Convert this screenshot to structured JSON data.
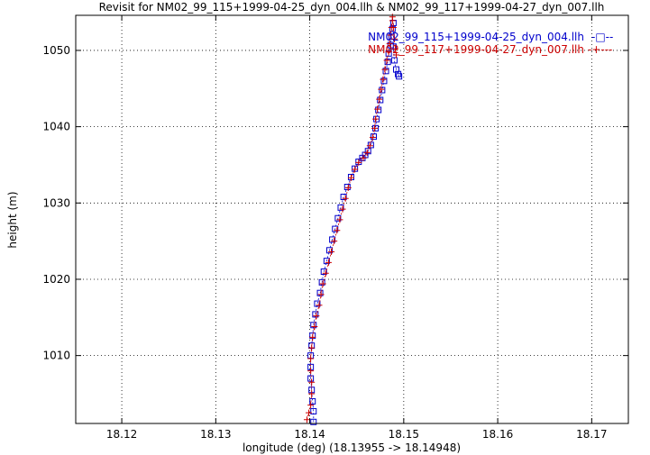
{
  "chart_data": {
    "type": "scatter",
    "title": "Revisit for NM02_99_115+1999-04-25_dyn_004.llh & NM02_99_117+1999-04-27_dyn_007.llh",
    "xlabel": "longitude (deg) (18.13955 -> 18.14948)",
    "ylabel": "height (m)",
    "xlim": [
      18.1151,
      18.1739
    ],
    "ylim": [
      1001.1,
      1054.6
    ],
    "xticks": [
      "18.12",
      "18.13",
      "18.14",
      "18.15",
      "18.16",
      "18.17"
    ],
    "xtick_values": [
      18.12,
      18.13,
      18.14,
      18.15,
      18.16,
      18.17
    ],
    "yticks": [
      "1010",
      "1020",
      "1030",
      "1040",
      "1050"
    ],
    "ytick_values": [
      1010,
      1020,
      1030,
      1040,
      1050
    ],
    "grid": true,
    "legend_position": "top-right",
    "series": [
      {
        "name": "NM02_99_115+1999-04-25_dyn_004.llh",
        "marker_label": "-□--",
        "color": "#0000cc",
        "marker": "square",
        "x": [
          18.1404,
          18.1404,
          18.1403,
          18.1402,
          18.1401,
          18.1401,
          18.1401,
          18.1402,
          18.1403,
          18.1404,
          18.1406,
          18.1408,
          18.1411,
          18.1413,
          18.1415,
          18.1418,
          18.1421,
          18.1424,
          18.1427,
          18.143,
          18.1433,
          18.1436,
          18.144,
          18.1444,
          18.1448,
          18.1452,
          18.1456,
          18.1459,
          18.1462,
          18.1465,
          18.1468,
          18.147,
          18.1471,
          18.1473,
          18.1475,
          18.1477,
          18.1479,
          18.1481,
          18.1483,
          18.1484,
          18.1486,
          18.1487,
          18.1488,
          18.1489,
          18.1489,
          18.149,
          18.1492,
          18.1494,
          18.1495
        ],
        "y": [
          1001.3,
          1002.7,
          1004.0,
          1005.5,
          1007.0,
          1008.5,
          1010.0,
          1011.3,
          1012.6,
          1014.0,
          1015.4,
          1016.8,
          1018.2,
          1019.6,
          1021.0,
          1022.4,
          1023.8,
          1025.2,
          1026.6,
          1028.0,
          1029.4,
          1030.8,
          1032.1,
          1033.4,
          1034.5,
          1035.4,
          1035.9,
          1036.3,
          1036.8,
          1037.6,
          1038.7,
          1039.8,
          1041.0,
          1042.2,
          1043.5,
          1044.8,
          1046.0,
          1047.3,
          1048.5,
          1049.6,
          1050.7,
          1051.8,
          1052.8,
          1053.6,
          1050.5,
          1048.7,
          1047.5,
          1046.9,
          1046.6
        ]
      },
      {
        "name": "NM02_99_117+1999-04-27_dyn_007.llh",
        "marker_label": "-+---",
        "color": "#cc0000",
        "marker": "plus",
        "x": [
          18.1397,
          18.1399,
          18.1401,
          18.1402,
          18.1402,
          18.1401,
          18.1401,
          18.1402,
          18.1403,
          18.1405,
          18.1407,
          18.141,
          18.1412,
          18.1414,
          18.1417,
          18.142,
          18.1423,
          18.1426,
          18.1429,
          18.1432,
          18.1435,
          18.1438,
          18.1441,
          18.1444,
          18.1448,
          18.1452,
          18.1457,
          18.1461,
          18.1464,
          18.1467,
          18.1469,
          18.147,
          18.1472,
          18.1474,
          18.1476,
          18.1478,
          18.148,
          18.1482,
          18.1484,
          18.1485,
          18.1486,
          18.1487,
          18.1488,
          18.1488,
          18.1489,
          18.149,
          18.1491,
          18.1492
        ],
        "y": [
          1001.6,
          1002.5,
          1003.5,
          1005.0,
          1006.5,
          1008.0,
          1009.6,
          1011.0,
          1012.4,
          1013.8,
          1015.2,
          1016.6,
          1018.0,
          1019.4,
          1020.8,
          1022.2,
          1023.6,
          1025.0,
          1026.4,
          1027.8,
          1029.2,
          1030.6,
          1032.0,
          1033.3,
          1034.4,
          1035.3,
          1035.9,
          1036.6,
          1037.5,
          1038.6,
          1039.8,
          1041.0,
          1042.3,
          1043.6,
          1044.9,
          1046.2,
          1047.5,
          1048.7,
          1049.8,
          1050.9,
          1052.0,
          1053.0,
          1053.9,
          1054.4,
          1053.0,
          1051.5,
          1050.2,
          1049.4
        ]
      }
    ]
  }
}
